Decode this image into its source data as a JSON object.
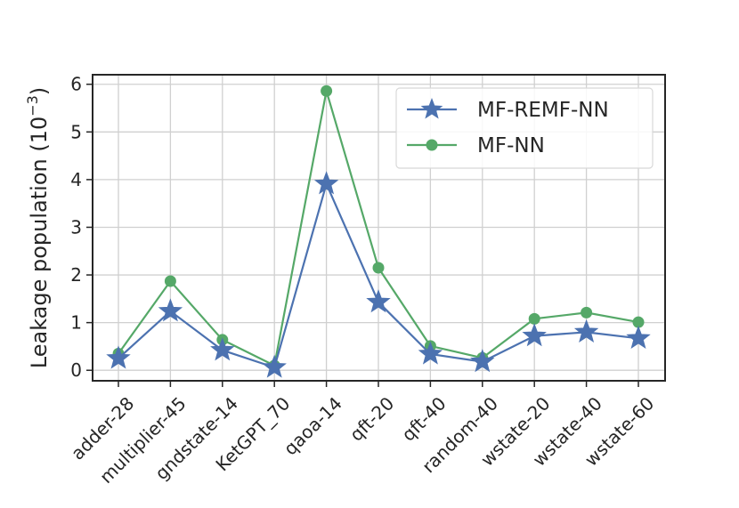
{
  "chart_data": {
    "type": "line",
    "title": "",
    "xlabel": "",
    "ylabel": "Leakage population (10",
    "ylabel_exp": "−3",
    "ylabel_close": ")",
    "categories": [
      "adder-28",
      "multiplier-45",
      "gndstate-14",
      "KetGPT_70",
      "qaoa-14",
      "qft-20",
      "qft-40",
      "random-40",
      "wstate-20",
      "wstate-40",
      "wstate-60"
    ],
    "series": [
      {
        "name": "MF-REMF-NN",
        "marker": "star",
        "color": "#4c72b0",
        "values": [
          0.25,
          1.24,
          0.42,
          0.06,
          3.91,
          1.43,
          0.34,
          0.18,
          0.72,
          0.8,
          0.67
        ]
      },
      {
        "name": "MF-NN",
        "marker": "circle",
        "color": "#55a868",
        "values": [
          0.35,
          1.87,
          0.64,
          0.1,
          5.86,
          2.15,
          0.51,
          0.26,
          1.08,
          1.21,
          1.01
        ]
      }
    ],
    "ylim": [
      -0.22,
      6.2
    ],
    "yticks": [
      "0",
      "1",
      "2",
      "3",
      "4",
      "5",
      "6"
    ],
    "grid": true,
    "legend_position": "top-right"
  }
}
